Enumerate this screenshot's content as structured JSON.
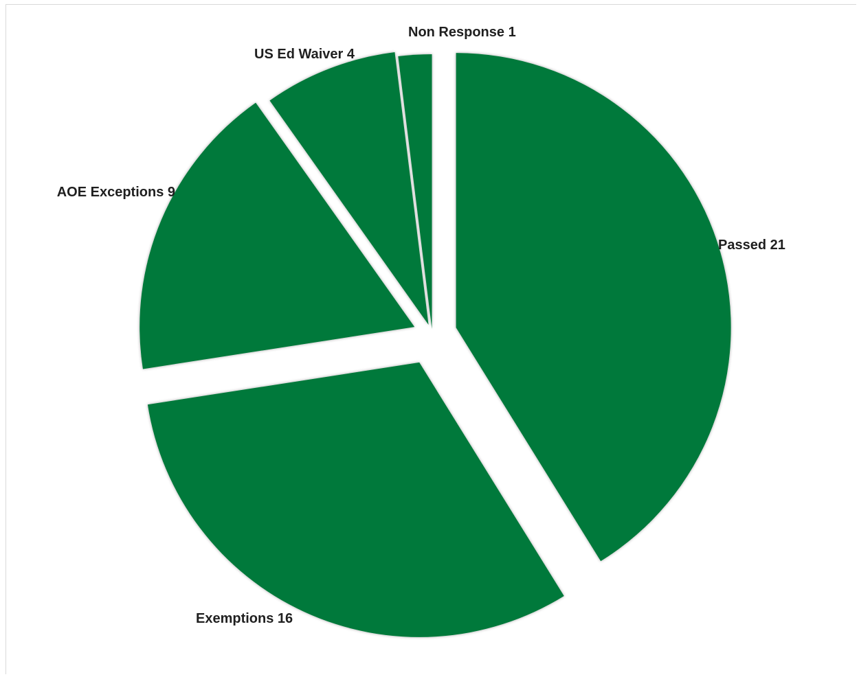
{
  "chart_data": {
    "type": "pie",
    "exploded": true,
    "start_angle_deg": 0,
    "direction": "clockwise",
    "slices": [
      {
        "name": "Passed",
        "value": 21,
        "label": "Passed 21",
        "color": "#00793a"
      },
      {
        "name": "Exemptions",
        "value": 16,
        "label": "Exemptions 16",
        "color": "#00793a"
      },
      {
        "name": "AOE Exceptions",
        "value": 9,
        "label": "AOE Exceptions 9",
        "color": "#00793a"
      },
      {
        "name": "US Ed Waiver",
        "value": 4,
        "label": "US Ed Waiver 4",
        "color": "#00793a"
      },
      {
        "name": "Non Response",
        "value": 1,
        "label": "Non Response 1",
        "color": "#00793a"
      }
    ]
  }
}
